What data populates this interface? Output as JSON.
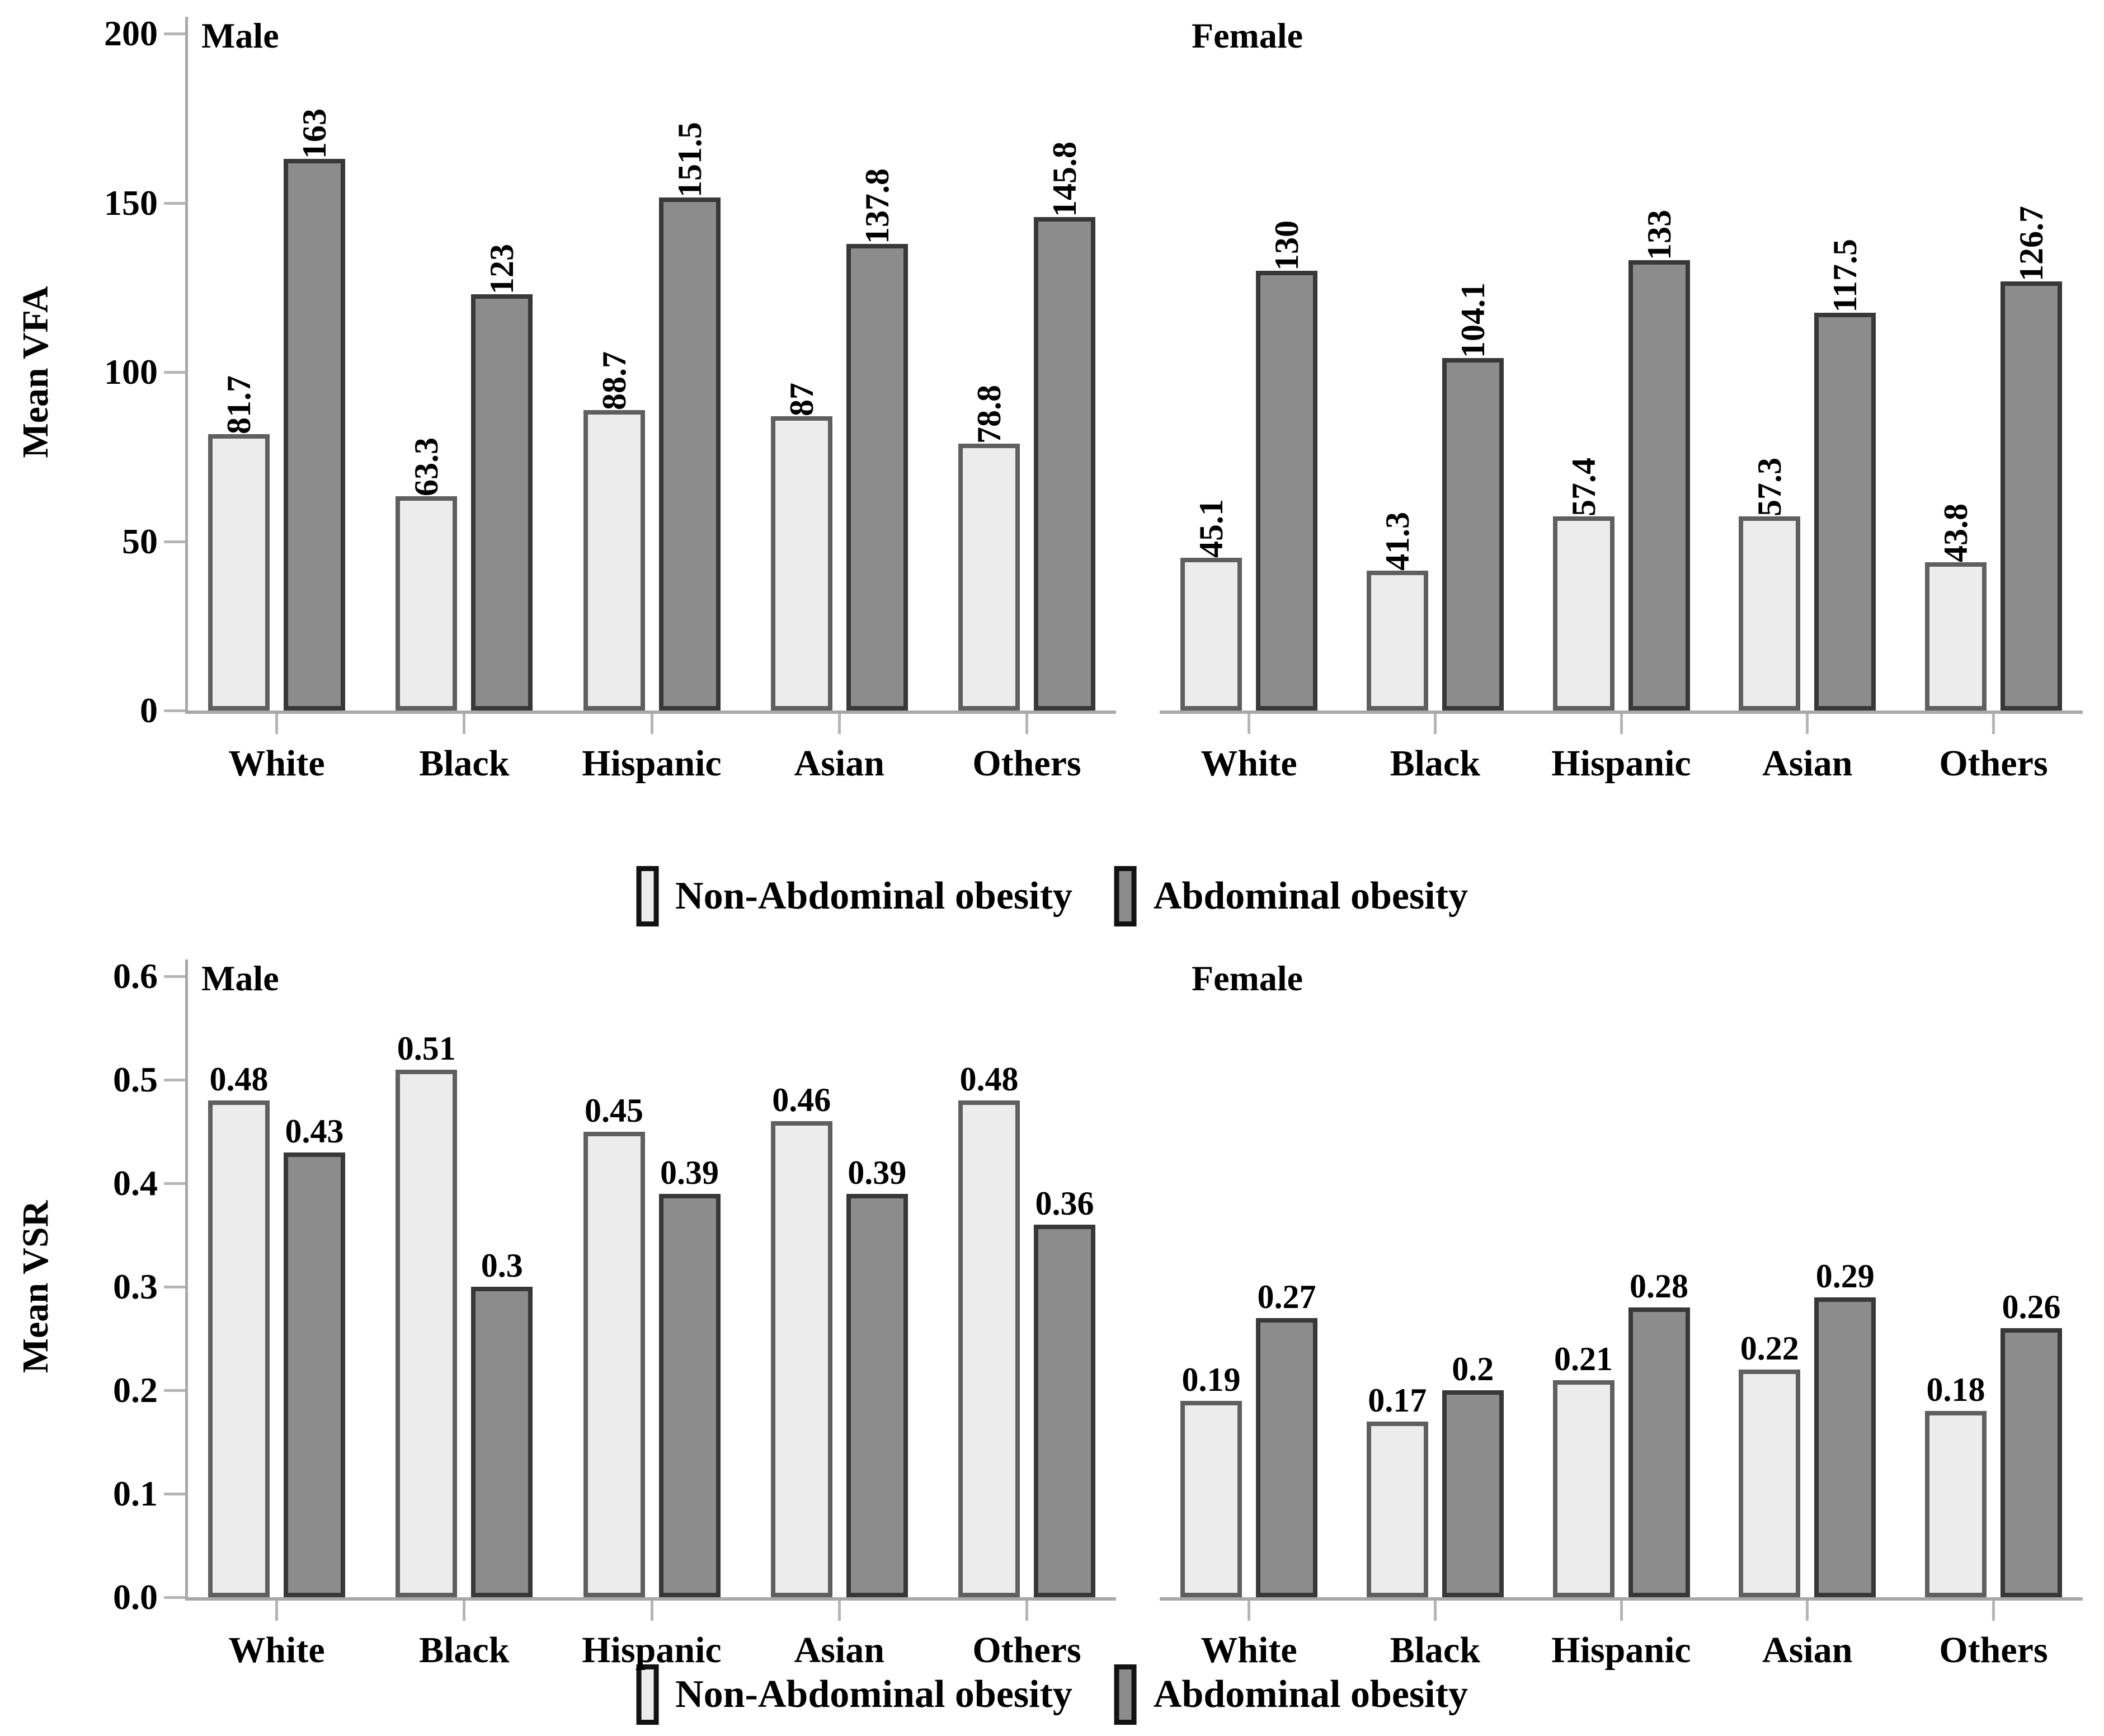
{
  "colors": {
    "non_abdominal_fill": "#ececec",
    "non_abdominal_border": "#5f5f5f",
    "abdominal_fill": "#8c8c8c",
    "abdominal_border": "#383838",
    "axis": "#a8a8a8",
    "tick": "#b5b5b5",
    "text": "#000000"
  },
  "chart_data": [
    {
      "type": "bar",
      "id": "mean-vfa",
      "ylabel": "Mean VFA",
      "ymax": 200,
      "grid": false,
      "rotated_value_labels": true,
      "yticks": [
        {
          "value": 0,
          "label": "0"
        },
        {
          "value": 50,
          "label": "50"
        },
        {
          "value": 100,
          "label": "100"
        },
        {
          "value": 150,
          "label": "150"
        },
        {
          "value": 200,
          "label": "200"
        }
      ],
      "categories": [
        "White",
        "Black",
        "Hispanic",
        "Asian",
        "Others"
      ],
      "panels": [
        {
          "title": "Male",
          "series": [
            {
              "name": "Non-Abdominal obesity",
              "values": [
                81.7,
                63.3,
                88.7,
                87,
                78.8
              ]
            },
            {
              "name": "Abdominal obesity",
              "values": [
                163,
                123,
                151.5,
                137.8,
                145.8
              ]
            }
          ]
        },
        {
          "title": "Female",
          "series": [
            {
              "name": "Non-Abdominal obesity",
              "values": [
                45.1,
                41.3,
                57.4,
                57.3,
                43.8
              ]
            },
            {
              "name": "Abdominal obesity",
              "values": [
                130,
                104.1,
                133,
                117.5,
                126.7
              ]
            }
          ]
        }
      ],
      "legend": [
        "Non-Abdominal obesity",
        "Abdominal obesity"
      ],
      "legend_position": "bottom-center"
    },
    {
      "type": "bar",
      "id": "mean-vsr",
      "ylabel": "Mean VSR",
      "ymax": 0.6,
      "grid": false,
      "rotated_value_labels": false,
      "yticks": [
        {
          "value": 0,
          "label": "0.0"
        },
        {
          "value": 0.1,
          "label": "0.1"
        },
        {
          "value": 0.2,
          "label": "0.2"
        },
        {
          "value": 0.3,
          "label": "0.3"
        },
        {
          "value": 0.4,
          "label": "0.4"
        },
        {
          "value": 0.5,
          "label": "0.5"
        },
        {
          "value": 0.6,
          "label": "0.6"
        }
      ],
      "categories": [
        "White",
        "Black",
        "Hispanic",
        "Asian",
        "Others"
      ],
      "panels": [
        {
          "title": "Male",
          "series": [
            {
              "name": "Non-Abdominal obesity",
              "values": [
                0.48,
                0.51,
                0.45,
                0.46,
                0.48
              ]
            },
            {
              "name": "Abdominal obesity",
              "values": [
                0.43,
                0.3,
                0.39,
                0.39,
                0.36
              ]
            }
          ]
        },
        {
          "title": "Female",
          "series": [
            {
              "name": "Non-Abdominal obesity",
              "values": [
                0.19,
                0.17,
                0.21,
                0.22,
                0.18
              ]
            },
            {
              "name": "Abdominal obesity",
              "values": [
                0.27,
                0.2,
                0.28,
                0.29,
                0.26
              ]
            }
          ]
        }
      ],
      "legend": [
        "Non-Abdominal obesity",
        "Abdominal obesity"
      ],
      "legend_position": "bottom-center"
    }
  ]
}
